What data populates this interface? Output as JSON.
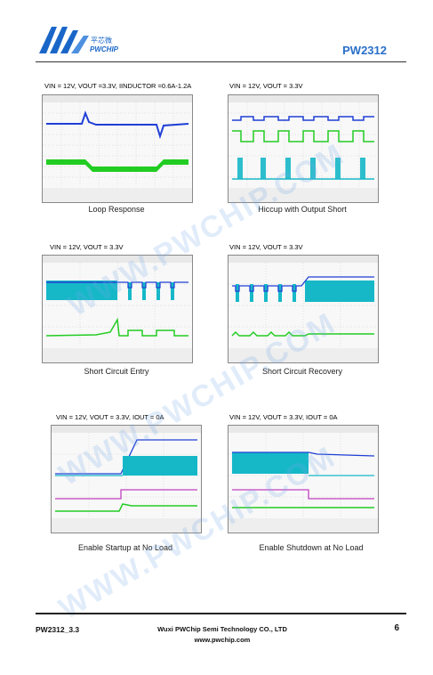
{
  "header": {
    "logo_cn": "平芯微",
    "logo_en": "PWCHIP",
    "part_number": "PW2312"
  },
  "figures": [
    {
      "condition": "VIN = 12V, VOUT =3.3V, IINDUCTOR =0.6A-1.2A",
      "title": "Loop Response"
    },
    {
      "condition": "VIN = 12V, VOUT = 3.3V",
      "title": "Hiccup with Output Short"
    },
    {
      "condition": "VIN = 12V, VOUT = 3.3V",
      "title": "Short Circuit Entry"
    },
    {
      "condition": "VIN = 12V, VOUT = 3.3V",
      "title": "Short Circuit Recovery"
    },
    {
      "condition": "VIN = 12V, VOUT = 3.3V, IOUT = 0A",
      "title": "Enable Startup at No Load"
    },
    {
      "condition": "VIN = 12V, VOUT = 3.3V,  IOUT = 0A",
      "title": "Enable Shutdown at No Load"
    }
  ],
  "watermark": "WWW.PWCHIP.COM",
  "footer": {
    "doc_code": "PW2312_3.3",
    "company": "Wuxi PWChip Semi Technology CO., LTD",
    "website": "www.pwchip.com",
    "page": "6"
  },
  "colors": {
    "brand_blue": "#1a66c8",
    "trace_blue": "#1f3fd6",
    "trace_green": "#22cc22",
    "trace_cyan": "#16b8c8",
    "trace_magenta": "#c040c0"
  }
}
